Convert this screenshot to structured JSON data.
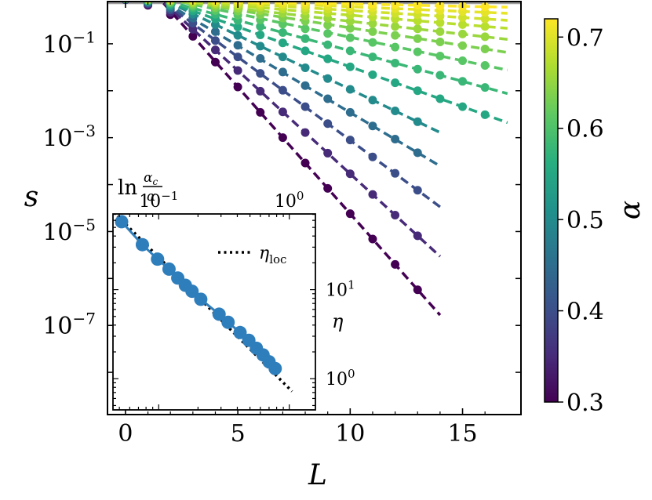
{
  "chart_data": {
    "type": "scatter",
    "xlabel": "L",
    "ylabel": "s",
    "y_scale": "log",
    "xlim": [
      -0.8,
      17.6
    ],
    "ylim_log10": [
      -8.9,
      -0.1
    ],
    "x_ticks": [
      0,
      5,
      10,
      15
    ],
    "y_ticks": [
      {
        "exp": -1,
        "base": "10",
        "sup": "−1"
      },
      {
        "exp": -3,
        "base": "10",
        "sup": "−3"
      },
      {
        "exp": -5,
        "base": "10",
        "sup": "−5"
      },
      {
        "exp": -7,
        "base": "10",
        "sup": "−7"
      }
    ],
    "reference_line": {
      "y": 0.75,
      "color": "#9e9e9e"
    },
    "colormap": "viridis",
    "colorbar": {
      "label": "α",
      "range": [
        0.3,
        0.72
      ],
      "ticks": [
        "0.3",
        "0.4",
        "0.5",
        "0.6",
        "0.7"
      ]
    },
    "series": [
      {
        "alpha": 0.3,
        "L": [
          0,
          1,
          2,
          3,
          4,
          5,
          6,
          7,
          8,
          9,
          10,
          11,
          12,
          13
        ],
        "log10_s": [
          -0.06,
          -0.18,
          -0.38,
          -0.84,
          -1.39,
          -1.92,
          -2.46,
          -3.0,
          -3.54,
          -4.08,
          -4.62,
          -5.16,
          -5.7,
          -6.24
        ],
        "fit_to": 14
      },
      {
        "alpha": 0.35,
        "L": [
          0,
          1,
          2,
          3,
          4,
          5,
          6,
          7,
          8,
          9,
          10,
          11,
          12,
          13
        ],
        "log10_s": [
          -0.06,
          -0.16,
          -0.33,
          -0.69,
          -1.13,
          -1.57,
          -2.01,
          -2.45,
          -2.89,
          -3.33,
          -3.77,
          -4.21,
          -4.65,
          -5.09
        ],
        "fit_to": 14
      },
      {
        "alpha": 0.4,
        "L": [
          0,
          1,
          2,
          3,
          4,
          5,
          6,
          7,
          8,
          9,
          10,
          11,
          12,
          13
        ],
        "log10_s": [
          -0.05,
          -0.14,
          -0.28,
          -0.56,
          -0.93,
          -1.28,
          -1.63,
          -1.99,
          -2.34,
          -2.7,
          -3.05,
          -3.41,
          -3.76,
          -4.12
        ],
        "fit_to": 14
      },
      {
        "alpha": 0.45,
        "L": [
          0,
          1,
          2,
          3,
          4,
          5,
          6,
          7,
          8,
          9,
          10,
          11,
          12,
          13
        ],
        "log10_s": [
          -0.05,
          -0.12,
          -0.24,
          -0.45,
          -0.74,
          -1.03,
          -1.31,
          -1.6,
          -1.89,
          -2.17,
          -2.46,
          -2.75,
          -3.03,
          -3.32
        ],
        "fit_to": 14
      },
      {
        "alpha": 0.5,
        "L": [
          0,
          1,
          2,
          3,
          4,
          5,
          6,
          7,
          8,
          9,
          10,
          11,
          12,
          13
        ],
        "log10_s": [
          -0.05,
          -0.1,
          -0.2,
          -0.37,
          -0.59,
          -0.82,
          -1.05,
          -1.28,
          -1.51,
          -1.74,
          -1.97,
          -2.2,
          -2.43,
          -2.66
        ],
        "fit_to": 14
      },
      {
        "alpha": 0.55,
        "L": [
          0,
          1,
          2,
          3,
          4,
          5,
          6,
          7,
          8,
          9,
          10,
          11,
          12,
          13,
          14,
          15,
          16
        ],
        "log10_s": [
          -0.04,
          -0.09,
          -0.17,
          -0.3,
          -0.47,
          -0.64,
          -0.81,
          -0.98,
          -1.15,
          -1.32,
          -1.49,
          -1.66,
          -1.83,
          -2.0,
          -2.17,
          -2.34,
          -2.51
        ],
        "fit_to": 17
      },
      {
        "alpha": 0.58,
        "L": [
          0,
          1,
          2,
          3,
          4,
          5,
          6,
          7,
          8,
          9,
          10,
          11,
          12,
          13,
          14,
          15,
          16
        ],
        "log10_s": [
          -0.04,
          -0.08,
          -0.14,
          -0.24,
          -0.37,
          -0.5,
          -0.63,
          -0.76,
          -0.89,
          -1.02,
          -1.15,
          -1.28,
          -1.41,
          -1.54,
          -1.67,
          -1.8,
          -1.93
        ],
        "fit_to": 17
      },
      {
        "alpha": 0.61,
        "L": [
          0,
          1,
          2,
          3,
          4,
          5,
          6,
          7,
          8,
          9,
          10,
          11,
          12,
          13,
          14,
          15,
          16
        ],
        "log10_s": [
          -0.04,
          -0.07,
          -0.12,
          -0.2,
          -0.29,
          -0.39,
          -0.49,
          -0.58,
          -0.68,
          -0.78,
          -0.87,
          -0.97,
          -1.07,
          -1.17,
          -1.26,
          -1.36,
          -1.46
        ],
        "fit_to": 17
      },
      {
        "alpha": 0.635,
        "L": [
          0,
          1,
          2,
          3,
          4,
          5,
          6,
          7,
          8,
          9,
          10,
          11,
          12,
          13,
          14,
          15,
          16
        ],
        "log10_s": [
          -0.03,
          -0.06,
          -0.1,
          -0.16,
          -0.23,
          -0.3,
          -0.38,
          -0.45,
          -0.52,
          -0.6,
          -0.67,
          -0.74,
          -0.82,
          -0.89,
          -0.96,
          -1.04,
          -1.11
        ],
        "fit_to": 17
      },
      {
        "alpha": 0.655,
        "L": [
          0,
          1,
          2,
          3,
          4,
          5,
          6,
          7,
          8,
          9,
          10,
          11,
          12,
          13,
          14,
          15,
          16
        ],
        "log10_s": [
          -0.03,
          -0.05,
          -0.08,
          -0.13,
          -0.18,
          -0.24,
          -0.29,
          -0.35,
          -0.41,
          -0.46,
          -0.52,
          -0.57,
          -0.63,
          -0.68,
          -0.74,
          -0.79,
          -0.85
        ],
        "fit_to": 17
      },
      {
        "alpha": 0.675,
        "L": [
          0,
          1,
          2,
          3,
          4,
          5,
          6,
          7,
          8,
          9,
          10,
          11,
          12,
          13,
          14,
          15,
          16
        ],
        "log10_s": [
          -0.03,
          -0.05,
          -0.07,
          -0.1,
          -0.14,
          -0.18,
          -0.22,
          -0.26,
          -0.3,
          -0.34,
          -0.39,
          -0.43,
          -0.47,
          -0.51,
          -0.55,
          -0.59,
          -0.63
        ],
        "fit_to": 17
      },
      {
        "alpha": 0.69,
        "L": [
          0,
          1,
          2,
          3,
          4,
          5,
          6,
          7,
          8,
          9,
          10,
          11,
          12,
          13,
          14,
          15,
          16
        ],
        "log10_s": [
          -0.02,
          -0.04,
          -0.06,
          -0.08,
          -0.11,
          -0.14,
          -0.17,
          -0.2,
          -0.23,
          -0.26,
          -0.29,
          -0.32,
          -0.35,
          -0.38,
          -0.41,
          -0.44,
          -0.47
        ],
        "fit_to": 17
      },
      {
        "alpha": 0.705,
        "L": [
          0,
          1,
          2,
          3,
          4,
          5,
          6,
          7,
          8,
          9,
          10,
          11,
          12,
          13,
          14,
          15,
          16
        ],
        "log10_s": [
          -0.02,
          -0.03,
          -0.05,
          -0.07,
          -0.09,
          -0.11,
          -0.13,
          -0.15,
          -0.17,
          -0.19,
          -0.21,
          -0.23,
          -0.25,
          -0.27,
          -0.29,
          -0.31,
          -0.33
        ],
        "fit_to": 17
      },
      {
        "alpha": 0.72,
        "L": [
          0,
          1,
          2,
          3,
          4,
          5,
          6,
          7,
          8,
          9,
          10,
          11,
          12,
          13,
          14,
          15,
          16
        ],
        "log10_s": [
          -0.02,
          -0.03,
          -0.04,
          -0.05,
          -0.06,
          -0.07,
          -0.09,
          -0.1,
          -0.11,
          -0.12,
          -0.14,
          -0.15,
          -0.16,
          -0.17,
          -0.19,
          -0.2,
          -0.21
        ],
        "fit_to": 17
      }
    ],
    "inset": {
      "xlabel_main": "ln",
      "xlabel_num": "α",
      "xlabel_num_sub": "c",
      "xlabel_den": "α",
      "x_scale": "log",
      "xlim_log10": [
        -1.35,
        0.2
      ],
      "x_ticks": [
        {
          "exp": -1,
          "base": "10",
          "sup": "−1"
        },
        {
          "exp": 0,
          "base": "10",
          "sup": "0"
        }
      ],
      "ylabel": "η",
      "y_scale": "log",
      "ylim_log10": [
        -0.35,
        1.85
      ],
      "y_ticks": [
        {
          "exp": 0,
          "base": "10",
          "sup": "0"
        },
        {
          "exp": 1,
          "base": "10",
          "sup": "1"
        }
      ],
      "points": [
        {
          "x": 0.052,
          "y": 58
        },
        {
          "x": 0.075,
          "y": 32
        },
        {
          "x": 0.098,
          "y": 22
        },
        {
          "x": 0.12,
          "y": 17
        },
        {
          "x": 0.14,
          "y": 13.5
        },
        {
          "x": 0.16,
          "y": 11.2
        },
        {
          "x": 0.18,
          "y": 9.6
        },
        {
          "x": 0.21,
          "y": 7.8
        },
        {
          "x": 0.29,
          "y": 5.3
        },
        {
          "x": 0.34,
          "y": 4.3
        },
        {
          "x": 0.42,
          "y": 3.3
        },
        {
          "x": 0.49,
          "y": 2.7
        },
        {
          "x": 0.56,
          "y": 2.2
        },
        {
          "x": 0.63,
          "y": 1.85
        },
        {
          "x": 0.7,
          "y": 1.55
        },
        {
          "x": 0.78,
          "y": 1.3
        }
      ],
      "point_color": "#2f7ebc",
      "reference": {
        "label_main": "η",
        "label_sub": "loc",
        "x_start": 0.045,
        "x_end": 1.05,
        "y_start": 75,
        "y_end": 0.72
      }
    }
  }
}
